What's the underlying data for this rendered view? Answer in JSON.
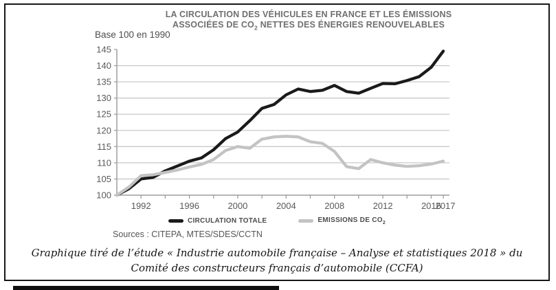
{
  "chart": {
    "title_line1": "LA CIRCULATION DES VÉHICULES EN FRANCE ET LES ÉMISSIONS",
    "title_line2_prefix": "ASSOCIÉES DE CO",
    "title_line2_subscript": "2",
    "title_line2_suffix": " NETTES DES ÉNERGIES RENOUVELABLES",
    "base_label": "Base 100 en 1990",
    "sources_label": "Sources : CITEPA, MTES/SDES/CCTN",
    "legend": {
      "series1_label": "CIRCULATION TOTALE",
      "series2_label_prefix": "EMISSIONS DE CO",
      "series2_label_subscript": "2"
    }
  },
  "caption": {
    "line1": "Graphique tiré de l’étude « Industrie automobile française – Analyse et statistiques 2018 » du",
    "line2": "Comité des constructeurs français d’automobile (CCFA)"
  },
  "chart_data": {
    "type": "line",
    "title": "LA CIRCULATION DES VÉHICULES EN FRANCE ET LES ÉMISSIONS ASSOCIÉES DE CO2 NETTES DES ÉNERGIES RENOUVELABLES",
    "subtitle": "Base 100 en 1990",
    "x": [
      1990,
      1991,
      1992,
      1993,
      1994,
      1995,
      1996,
      1997,
      1998,
      1999,
      2000,
      2001,
      2002,
      2003,
      2004,
      2005,
      2006,
      2007,
      2008,
      2009,
      2010,
      2011,
      2012,
      2013,
      2014,
      2015,
      2016,
      2017
    ],
    "series": [
      {
        "name": "CIRCULATION TOTALE",
        "color": "#1a1a1a",
        "values": [
          100,
          102,
          105,
          105.5,
          107.5,
          109,
          110.5,
          111.5,
          114,
          117.5,
          119.5,
          123,
          126.8,
          128,
          131,
          132.8,
          132,
          132.4,
          133.9,
          132,
          131.5,
          133,
          134.5,
          134.4,
          135.4,
          136.6,
          139.5,
          144.5
        ]
      },
      {
        "name": "EMISSIONS DE CO2",
        "color": "#c3c3c3",
        "values": [
          100,
          102.5,
          106,
          106.3,
          107,
          107.8,
          108.7,
          109.5,
          111,
          113.8,
          115,
          114.5,
          117.3,
          118,
          118.2,
          118,
          116.5,
          116,
          113.5,
          108.8,
          108.2,
          111,
          110,
          109.3,
          108.9,
          109.1,
          109.6,
          110.5
        ]
      }
    ],
    "ylim": [
      100,
      145
    ],
    "yticks": [
      100,
      105,
      110,
      115,
      120,
      125,
      130,
      135,
      140,
      145
    ],
    "xtick_minor_step": 2,
    "xtick_labels": [
      "1992",
      "1996",
      "2000",
      "2004",
      "2008",
      "2012",
      "2016",
      "2017"
    ],
    "grid": true,
    "legend_position": "bottom",
    "sources": "Sources : CITEPA, MTES/SDES/CCTN",
    "colors": {
      "grid": "#c9c9c9",
      "axis": "#9e9e9e",
      "tick_text": "#595959"
    }
  }
}
